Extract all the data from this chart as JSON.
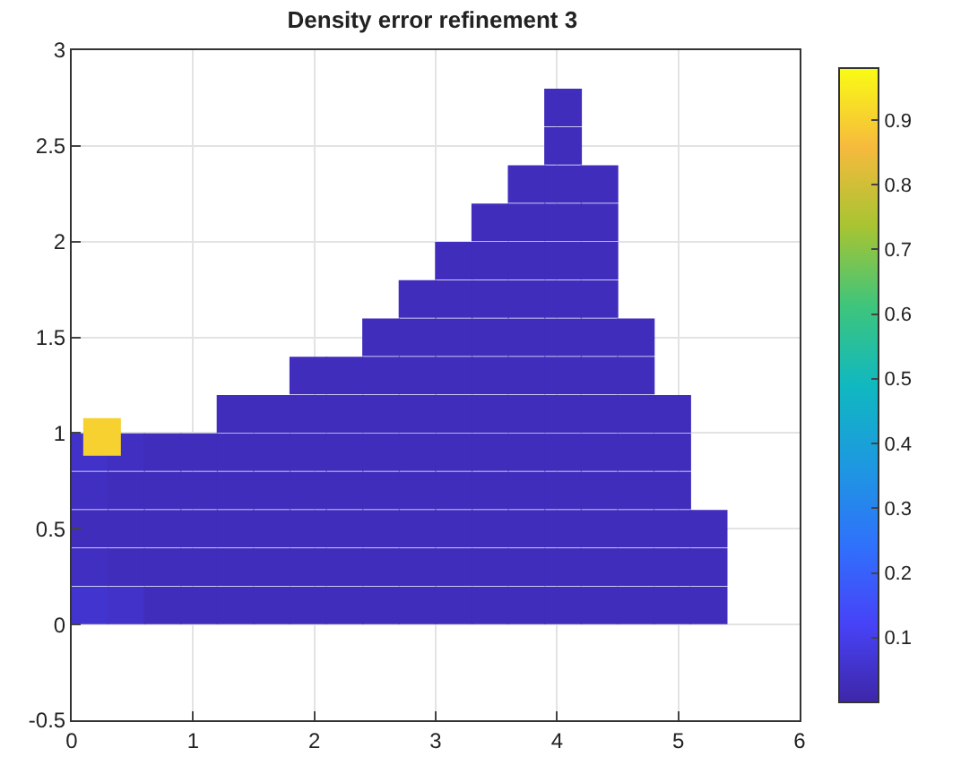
{
  "chart_data": {
    "type": "scatter",
    "title": "Density error refinement 3",
    "x": [
      0.15,
      0.15,
      0.15,
      0.15,
      0.15,
      0.45,
      0.45,
      0.45,
      0.45,
      0.45,
      0.75,
      0.75,
      0.75,
      0.75,
      0.75,
      1.05,
      1.05,
      1.05,
      1.05,
      1.05,
      1.35,
      1.35,
      1.35,
      1.35,
      1.35,
      1.35,
      1.65,
      1.65,
      1.65,
      1.65,
      1.65,
      1.65,
      1.95,
      1.95,
      1.95,
      1.95,
      1.95,
      1.95,
      1.95,
      2.25,
      2.25,
      2.25,
      2.25,
      2.25,
      2.25,
      2.25,
      2.55,
      2.55,
      2.55,
      2.55,
      2.55,
      2.55,
      2.55,
      2.55,
      2.85,
      2.85,
      2.85,
      2.85,
      2.85,
      2.85,
      2.85,
      2.85,
      2.85,
      3.15,
      3.15,
      3.15,
      3.15,
      3.15,
      3.15,
      3.15,
      3.15,
      3.15,
      3.15,
      3.45,
      3.45,
      3.45,
      3.45,
      3.45,
      3.45,
      3.45,
      3.45,
      3.45,
      3.45,
      3.45,
      3.75,
      3.75,
      3.75,
      3.75,
      3.75,
      3.75,
      3.75,
      3.75,
      3.75,
      3.75,
      3.75,
      3.75,
      4.05,
      4.05,
      4.05,
      4.05,
      4.05,
      4.05,
      4.05,
      4.05,
      4.05,
      4.05,
      4.05,
      4.05,
      4.05,
      4.05,
      4.35,
      4.35,
      4.35,
      4.35,
      4.35,
      4.35,
      4.35,
      4.35,
      4.35,
      4.35,
      4.35,
      4.35,
      4.65,
      4.65,
      4.65,
      4.65,
      4.65,
      4.65,
      4.65,
      4.65,
      4.95,
      4.95,
      4.95,
      4.95,
      4.95,
      4.95,
      5.25,
      5.25,
      5.25,
      0.25
    ],
    "values": [
      0.1,
      0.3,
      0.5,
      0.7,
      0.9,
      0.1,
      0.3,
      0.5,
      0.7,
      0.9,
      0.1,
      0.3,
      0.5,
      0.7,
      0.9,
      0.1,
      0.3,
      0.5,
      0.7,
      0.9,
      0.1,
      0.3,
      0.5,
      0.7,
      0.9,
      1.1,
      0.1,
      0.3,
      0.5,
      0.7,
      0.9,
      1.1,
      0.1,
      0.3,
      0.5,
      0.7,
      0.9,
      1.1,
      1.3,
      0.1,
      0.3,
      0.5,
      0.7,
      0.9,
      1.1,
      1.3,
      0.1,
      0.3,
      0.5,
      0.7,
      0.9,
      1.1,
      1.3,
      1.5,
      0.1,
      0.3,
      0.5,
      0.7,
      0.9,
      1.1,
      1.3,
      1.5,
      1.7,
      0.1,
      0.3,
      0.5,
      0.7,
      0.9,
      1.1,
      1.3,
      1.5,
      1.7,
      1.9,
      0.1,
      0.3,
      0.5,
      0.7,
      0.9,
      1.1,
      1.3,
      1.5,
      1.7,
      1.9,
      2.1,
      0.1,
      0.3,
      0.5,
      0.7,
      0.9,
      1.1,
      1.3,
      1.5,
      1.7,
      1.9,
      2.1,
      2.3,
      0.1,
      0.3,
      0.5,
      0.7,
      0.9,
      1.1,
      1.3,
      1.5,
      1.7,
      1.9,
      2.1,
      2.3,
      2.5,
      2.7,
      0.1,
      0.3,
      0.5,
      0.7,
      0.9,
      1.1,
      1.3,
      1.5,
      1.7,
      1.9,
      2.1,
      2.3,
      0.1,
      0.3,
      0.5,
      0.7,
      0.9,
      1.1,
      1.3,
      1.5,
      0.1,
      0.3,
      0.5,
      0.7,
      0.9,
      1.1,
      0.1,
      0.3,
      0.5,
      0.98
    ],
    "cvalues": [
      0.06,
      0.04,
      0.03,
      0.04,
      0.05,
      0.05,
      0.03,
      0.03,
      0.03,
      0.04,
      0.03,
      0.03,
      0.03,
      0.03,
      0.03,
      0.03,
      0.03,
      0.03,
      0.03,
      0.03,
      0.03,
      0.03,
      0.03,
      0.03,
      0.03,
      0.03,
      0.03,
      0.03,
      0.03,
      0.03,
      0.03,
      0.03,
      0.03,
      0.03,
      0.03,
      0.03,
      0.03,
      0.03,
      0.03,
      0.03,
      0.03,
      0.03,
      0.03,
      0.03,
      0.03,
      0.03,
      0.03,
      0.03,
      0.03,
      0.03,
      0.03,
      0.03,
      0.03,
      0.03,
      0.03,
      0.03,
      0.03,
      0.03,
      0.03,
      0.03,
      0.03,
      0.03,
      0.03,
      0.03,
      0.03,
      0.03,
      0.03,
      0.03,
      0.03,
      0.03,
      0.03,
      0.03,
      0.03,
      0.03,
      0.03,
      0.03,
      0.03,
      0.03,
      0.03,
      0.03,
      0.03,
      0.03,
      0.03,
      0.03,
      0.03,
      0.03,
      0.03,
      0.03,
      0.03,
      0.03,
      0.03,
      0.03,
      0.03,
      0.03,
      0.03,
      0.03,
      0.03,
      0.03,
      0.03,
      0.03,
      0.03,
      0.03,
      0.03,
      0.03,
      0.03,
      0.03,
      0.03,
      0.03,
      0.03,
      0.03,
      0.03,
      0.03,
      0.03,
      0.03,
      0.03,
      0.03,
      0.03,
      0.03,
      0.03,
      0.03,
      0.03,
      0.03,
      0.03,
      0.03,
      0.03,
      0.03,
      0.03,
      0.03,
      0.03,
      0.03,
      0.03,
      0.03,
      0.03,
      0.03,
      0.03,
      0.03,
      0.03,
      0.03,
      0.03,
      0.9
    ],
    "marker": "square",
    "grid": true,
    "xlim": [
      0,
      6
    ],
    "xticks": [
      0,
      1,
      2,
      3,
      4,
      5,
      6
    ],
    "ylim": [
      -0.5,
      3
    ],
    "yticks": [
      -0.5,
      0,
      0.5,
      1,
      1.5,
      2,
      2.5,
      3
    ],
    "clim": [
      0,
      0.98
    ],
    "cticks": [
      0.1,
      0.2,
      0.3,
      0.4,
      0.5,
      0.6,
      0.7,
      0.8,
      0.9
    ]
  }
}
